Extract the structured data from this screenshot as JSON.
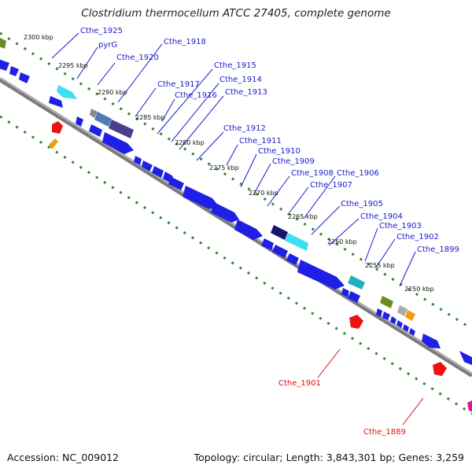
{
  "title": "Clostridium thermocellum ATCC 27405, complete genome",
  "footer": {
    "accession": "Accession: NC_009012",
    "summary": "Topology: circular; Length: 3,843,301 bp; Genes: 3,259"
  },
  "colors": {
    "backbone": "#7a7a7a",
    "gene_blue": "#1f1fe6",
    "gene_cyan": "#3ee0f0",
    "gene_olive": "#6b8e23",
    "gene_purple": "#4a3f8a",
    "gene_red": "#ee1111",
    "gene_orange": "#f39c12",
    "label_blue": "#1a1acc",
    "label_red": "#dd1111",
    "scale_dots": "#2e8b2e"
  },
  "scale_ticks": [
    "2300 kbp",
    "2295 kbp",
    "2290 kbp",
    "2285 kbp",
    "2280 kbp",
    "2275 kbp",
    "2270 kbp",
    "2265 kbp",
    "2260 kbp",
    "2255 kbp",
    "2250 kbp"
  ],
  "gene_labels_forward": [
    "Cthe_1925",
    "pyrG",
    "Cthe_1918",
    "Cthe_1920",
    "Cthe_1915",
    "Cthe_1914",
    "Cthe_1917",
    "Cthe_1913",
    "Cthe_1916",
    "Cthe_1912",
    "Cthe_1911",
    "Cthe_1910",
    "Cthe_1909",
    "Cthe_1908",
    "Cthe_1906",
    "Cthe_1907",
    "Cthe_1905",
    "Cthe_1904",
    "Cthe_1903",
    "Cthe_1902",
    "Cthe_1899"
  ],
  "gene_labels_reverse": [
    "Cthe_1901",
    "Cthe_1889"
  ]
}
